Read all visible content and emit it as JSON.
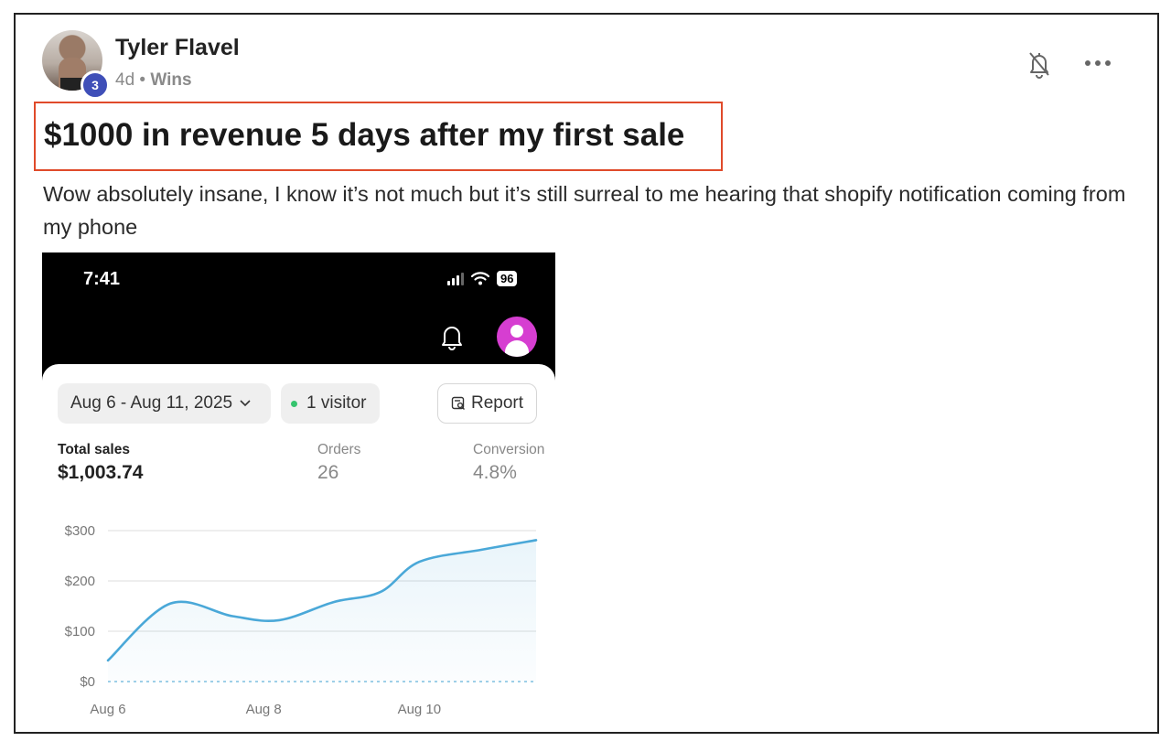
{
  "post": {
    "author": "Tyler Flavel",
    "level": "3",
    "age": "4d",
    "separator": "•",
    "category": "Wins",
    "title": "$1000 in revenue 5 days after my first sale",
    "body": "Wow absolutely insane, I know it’s not much but it’s still surreal to me hearing that shopify notification coming from my phone",
    "icons": {
      "notify": "bell-off-icon",
      "more": "more-dots-icon"
    },
    "highlight_color": "#e04a2a"
  },
  "screenshot": {
    "status": {
      "time": "7:41",
      "battery": "96"
    },
    "date_range": "Aug 6 - Aug 11, 2025",
    "visitors": "1 visitor",
    "report_label": "Report",
    "metrics": {
      "total_sales": {
        "label": "Total sales",
        "value": "$1,003.74"
      },
      "orders": {
        "label": "Orders",
        "value": "26"
      },
      "conversion": {
        "label": "Conversion",
        "value": "4.8%"
      }
    },
    "accent_color": "#d63ed1"
  },
  "chart_data": {
    "type": "area",
    "title": "",
    "xlabel": "",
    "ylabel": "",
    "x_ticks": [
      "Aug 6",
      "Aug 8",
      "Aug 10"
    ],
    "y_ticks": [
      "$0",
      "$100",
      "$200",
      "$300"
    ],
    "ylim": [
      0,
      300
    ],
    "grid": true,
    "line_color": "#4aa8d8",
    "series": [
      {
        "values": [
          {
            "x": 6.0,
            "y": 42
          },
          {
            "x": 6.8,
            "y": 155
          },
          {
            "x": 7.6,
            "y": 130
          },
          {
            "x": 8.2,
            "y": 122
          },
          {
            "x": 8.9,
            "y": 158
          },
          {
            "x": 9.5,
            "y": 178
          },
          {
            "x": 10.0,
            "y": 238
          },
          {
            "x": 10.8,
            "y": 262
          },
          {
            "x": 11.5,
            "y": 281
          }
        ]
      }
    ]
  }
}
